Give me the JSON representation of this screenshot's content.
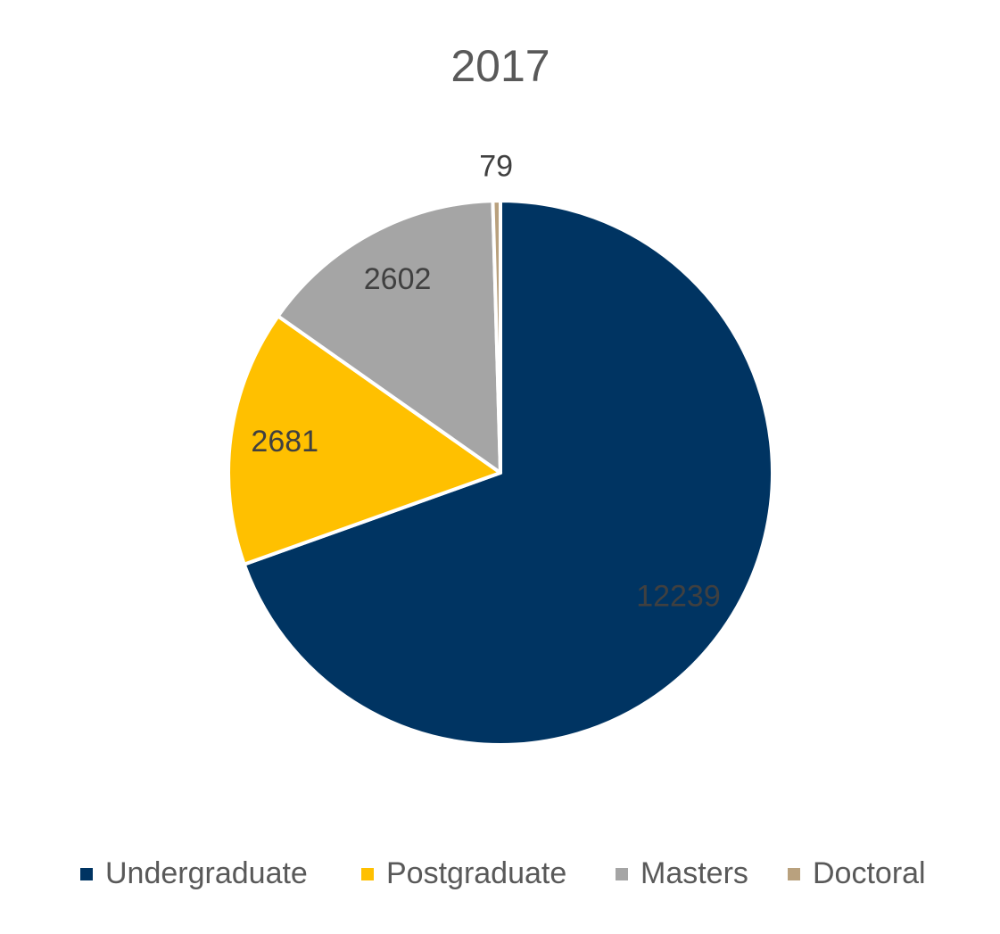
{
  "chart_data": {
    "type": "pie",
    "title": "2017",
    "categories": [
      "Undergraduate",
      "Postgraduate",
      "Masters",
      "Doctoral"
    ],
    "values": [
      12239,
      2681,
      2602,
      79
    ],
    "colors": [
      "#003462",
      "#FFC000",
      "#A5A5A5",
      "#B9A17E"
    ],
    "legend": "bottom"
  }
}
